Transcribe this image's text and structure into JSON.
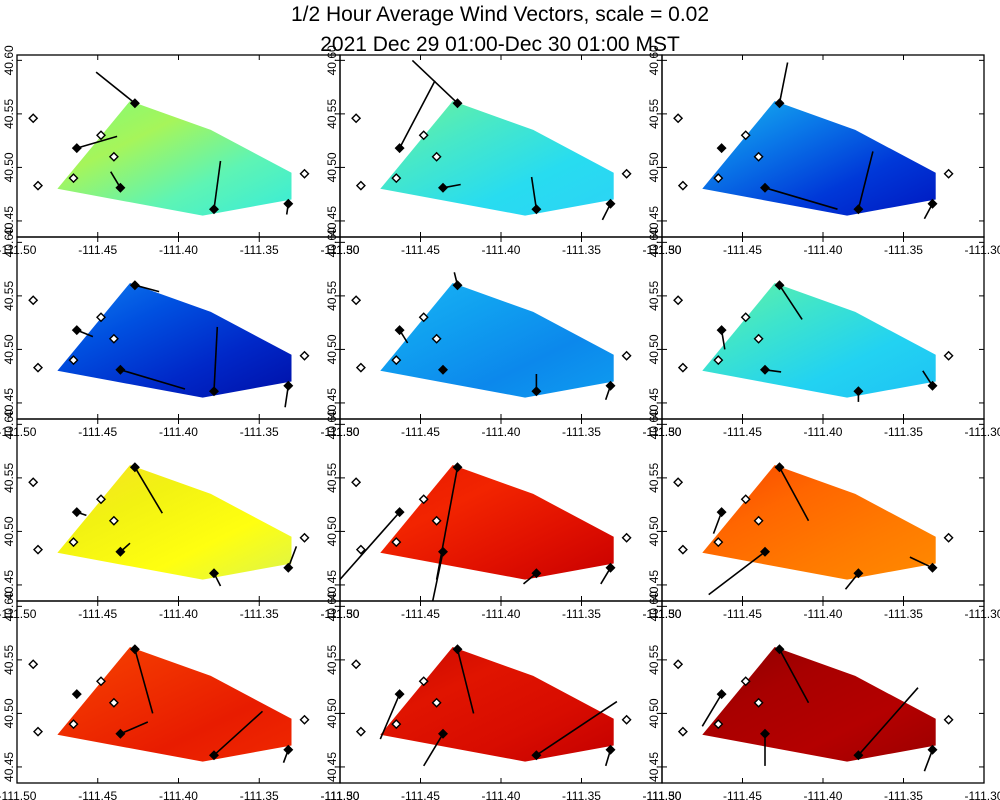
{
  "title": "1/2 Hour Average Wind Vectors, scale =  0.02",
  "subtitle": "2021 Dec 29 01:00-Dec 30 01:00 MST",
  "chart_data": {
    "type": "vector-field-grid",
    "title": "1/2 Hour Average Wind Vectors, scale =  0.02",
    "subtitle": "2021 Dec 29 01:00-Dec 30 01:00 MST",
    "layout": {
      "rows": 4,
      "cols": 3
    },
    "xlim": [
      -111.5,
      -111.3
    ],
    "ylim": [
      40.435,
      40.605
    ],
    "x_ticks": [
      -111.5,
      -111.45,
      -111.4,
      -111.35,
      -111.3
    ],
    "x_tick_labels": [
      "-111.50",
      "-111.45",
      "-111.40",
      "-111.35",
      "-111.30"
    ],
    "y_ticks": [
      40.45,
      40.5,
      40.55,
      40.6
    ],
    "y_tick_labels": [
      "40.45",
      "40.50",
      "40.55",
      "40.60"
    ],
    "xlabel": "",
    "ylabel": "",
    "grid": false,
    "basin_polygon": [
      [
        -111.475,
        40.48
      ],
      [
        -111.43,
        40.562
      ],
      [
        -111.38,
        40.535
      ],
      [
        -111.33,
        40.495
      ],
      [
        -111.33,
        40.47
      ],
      [
        -111.385,
        40.455
      ],
      [
        -111.475,
        40.48
      ]
    ],
    "stations": [
      {
        "lon": -111.49,
        "lat": 40.546,
        "filled": false
      },
      {
        "lon": -111.487,
        "lat": 40.483,
        "filled": false
      },
      {
        "lon": -111.465,
        "lat": 40.49,
        "filled": false
      },
      {
        "lon": -111.463,
        "lat": 40.518,
        "filled": true
      },
      {
        "lon": -111.448,
        "lat": 40.53,
        "filled": false
      },
      {
        "lon": -111.44,
        "lat": 40.51,
        "filled": false
      },
      {
        "lon": -111.436,
        "lat": 40.481,
        "filled": true
      },
      {
        "lon": -111.427,
        "lat": 40.56,
        "filled": true
      },
      {
        "lon": -111.378,
        "lat": 40.461,
        "filled": true
      },
      {
        "lon": -111.332,
        "lat": 40.466,
        "filled": true
      },
      {
        "lon": -111.322,
        "lat": 40.494,
        "filled": false
      }
    ],
    "panels": [
      {
        "id": 1,
        "colors": [
          "#7dfb7b",
          "#a6f55a",
          "#5ef4b4",
          "#38ecd9"
        ],
        "vectors": [
          {
            "s": 7,
            "dx": -0.024,
            "dy": 0.029
          },
          {
            "s": 3,
            "dx": 0.025,
            "dy": 0.011
          },
          {
            "s": 6,
            "dx": -0.006,
            "dy": 0.015
          },
          {
            "s": 8,
            "dx": 0.004,
            "dy": 0.045
          },
          {
            "s": 9,
            "dx": -0.001,
            "dy": -0.01
          }
        ]
      },
      {
        "id": 2,
        "colors": [
          "#6cf39a",
          "#47e8c8",
          "#28dcf0",
          "#2cd3f5"
        ],
        "vectors": [
          {
            "s": 3,
            "dx": 0.022,
            "dy": 0.063
          },
          {
            "s": 7,
            "dx": -0.028,
            "dy": 0.04
          },
          {
            "s": 6,
            "dx": 0.011,
            "dy": 0.003
          },
          {
            "s": 8,
            "dx": -0.003,
            "dy": 0.03
          },
          {
            "s": 9,
            "dx": -0.005,
            "dy": -0.015
          }
        ]
      },
      {
        "id": 3,
        "colors": [
          "#17b6f0",
          "#0a78e8",
          "#0038d8",
          "#0018c0"
        ],
        "vectors": [
          {
            "s": 7,
            "dx": 0.005,
            "dy": 0.038
          },
          {
            "s": 8,
            "dx": 0.009,
            "dy": 0.054
          },
          {
            "s": 6,
            "dx": 0.045,
            "dy": -0.02
          },
          {
            "s": 9,
            "dx": -0.005,
            "dy": -0.014
          }
        ]
      },
      {
        "id": 4,
        "colors": [
          "#0f7ef0",
          "#0050e0",
          "#0028c8",
          "#0010a8"
        ],
        "vectors": [
          {
            "s": 7,
            "dx": 0.015,
            "dy": -0.006
          },
          {
            "s": 3,
            "dx": 0.01,
            "dy": -0.006
          },
          {
            "s": 6,
            "dx": 0.04,
            "dy": -0.018
          },
          {
            "s": 8,
            "dx": 0.002,
            "dy": 0.06
          },
          {
            "s": 9,
            "dx": -0.002,
            "dy": -0.02
          }
        ]
      },
      {
        "id": 5,
        "colors": [
          "#1ab4f4",
          "#10a0f0",
          "#0c88ec",
          "#0e9cef"
        ],
        "vectors": [
          {
            "s": 7,
            "dx": -0.002,
            "dy": 0.012
          },
          {
            "s": 3,
            "dx": 0.005,
            "dy": -0.012
          },
          {
            "s": 6,
            "dx": 0.001,
            "dy": -0.002
          },
          {
            "s": 8,
            "dx": 0.0,
            "dy": 0.016
          },
          {
            "s": 9,
            "dx": -0.003,
            "dy": -0.013
          }
        ]
      },
      {
        "id": 6,
        "colors": [
          "#64f2a4",
          "#3ee4cc",
          "#22d2f2",
          "#1fc2f4"
        ],
        "vectors": [
          {
            "s": 3,
            "dx": 0.002,
            "dy": -0.018
          },
          {
            "s": 7,
            "dx": 0.014,
            "dy": -0.032
          },
          {
            "s": 6,
            "dx": 0.01,
            "dy": -0.002
          },
          {
            "s": 9,
            "dx": -0.006,
            "dy": 0.014
          },
          {
            "s": 8,
            "dx": 0.0,
            "dy": -0.01
          }
        ]
      },
      {
        "id": 7,
        "colors": [
          "#f6e224",
          "#f2f212",
          "#ffff10",
          "#dcf44a"
        ],
        "vectors": [
          {
            "s": 7,
            "dx": 0.017,
            "dy": -0.043
          },
          {
            "s": 3,
            "dx": 0.006,
            "dy": -0.003
          },
          {
            "s": 6,
            "dx": 0.006,
            "dy": 0.008
          },
          {
            "s": 9,
            "dx": 0.005,
            "dy": 0.02
          },
          {
            "s": 8,
            "dx": 0.004,
            "dy": -0.012
          }
        ]
      },
      {
        "id": 8,
        "colors": [
          "#e81a00",
          "#f22400",
          "#e01000",
          "#c80000"
        ],
        "vectors": [
          {
            "s": 3,
            "dx": -0.05,
            "dy": -0.085
          },
          {
            "s": 6,
            "dx": -0.007,
            "dy": -0.05
          },
          {
            "s": 7,
            "dx": -0.013,
            "dy": -0.105
          },
          {
            "s": 8,
            "dx": -0.008,
            "dy": -0.01
          },
          {
            "s": 9,
            "dx": -0.006,
            "dy": -0.015
          }
        ]
      },
      {
        "id": 9,
        "colors": [
          "#f84800",
          "#ff6600",
          "#ff7a00",
          "#ff8a00"
        ],
        "vectors": [
          {
            "s": 3,
            "dx": -0.005,
            "dy": -0.02
          },
          {
            "s": 6,
            "dx": -0.035,
            "dy": -0.04
          },
          {
            "s": 7,
            "dx": 0.018,
            "dy": -0.05
          },
          {
            "s": 8,
            "dx": -0.008,
            "dy": -0.015
          },
          {
            "s": 9,
            "dx": -0.014,
            "dy": 0.01
          }
        ]
      },
      {
        "id": 10,
        "colors": [
          "#f64400",
          "#f03000",
          "#e81c00",
          "#f02800"
        ],
        "vectors": [
          {
            "s": 7,
            "dx": 0.011,
            "dy": -0.06
          },
          {
            "s": 6,
            "dx": 0.017,
            "dy": 0.011
          },
          {
            "s": 8,
            "dx": 0.03,
            "dy": 0.041
          },
          {
            "s": 9,
            "dx": -0.003,
            "dy": -0.012
          }
        ]
      },
      {
        "id": 11,
        "colors": [
          "#c80800",
          "#e01400",
          "#d80c00",
          "#c40000"
        ],
        "vectors": [
          {
            "s": 3,
            "dx": -0.012,
            "dy": -0.042
          },
          {
            "s": 7,
            "dx": 0.01,
            "dy": -0.06
          },
          {
            "s": 6,
            "dx": -0.012,
            "dy": -0.03
          },
          {
            "s": 8,
            "dx": 0.05,
            "dy": 0.05
          },
          {
            "s": 9,
            "dx": -0.003,
            "dy": -0.015
          }
        ]
      },
      {
        "id": 12,
        "colors": [
          "#8c0000",
          "#a80000",
          "#b40000",
          "#9c0000"
        ],
        "vectors": [
          {
            "s": 7,
            "dx": 0.018,
            "dy": -0.05
          },
          {
            "s": 3,
            "dx": -0.012,
            "dy": -0.03
          },
          {
            "s": 6,
            "dx": 0.0,
            "dy": -0.03
          },
          {
            "s": 8,
            "dx": 0.037,
            "dy": 0.063
          },
          {
            "s": 9,
            "dx": -0.005,
            "dy": -0.02
          }
        ]
      }
    ]
  }
}
